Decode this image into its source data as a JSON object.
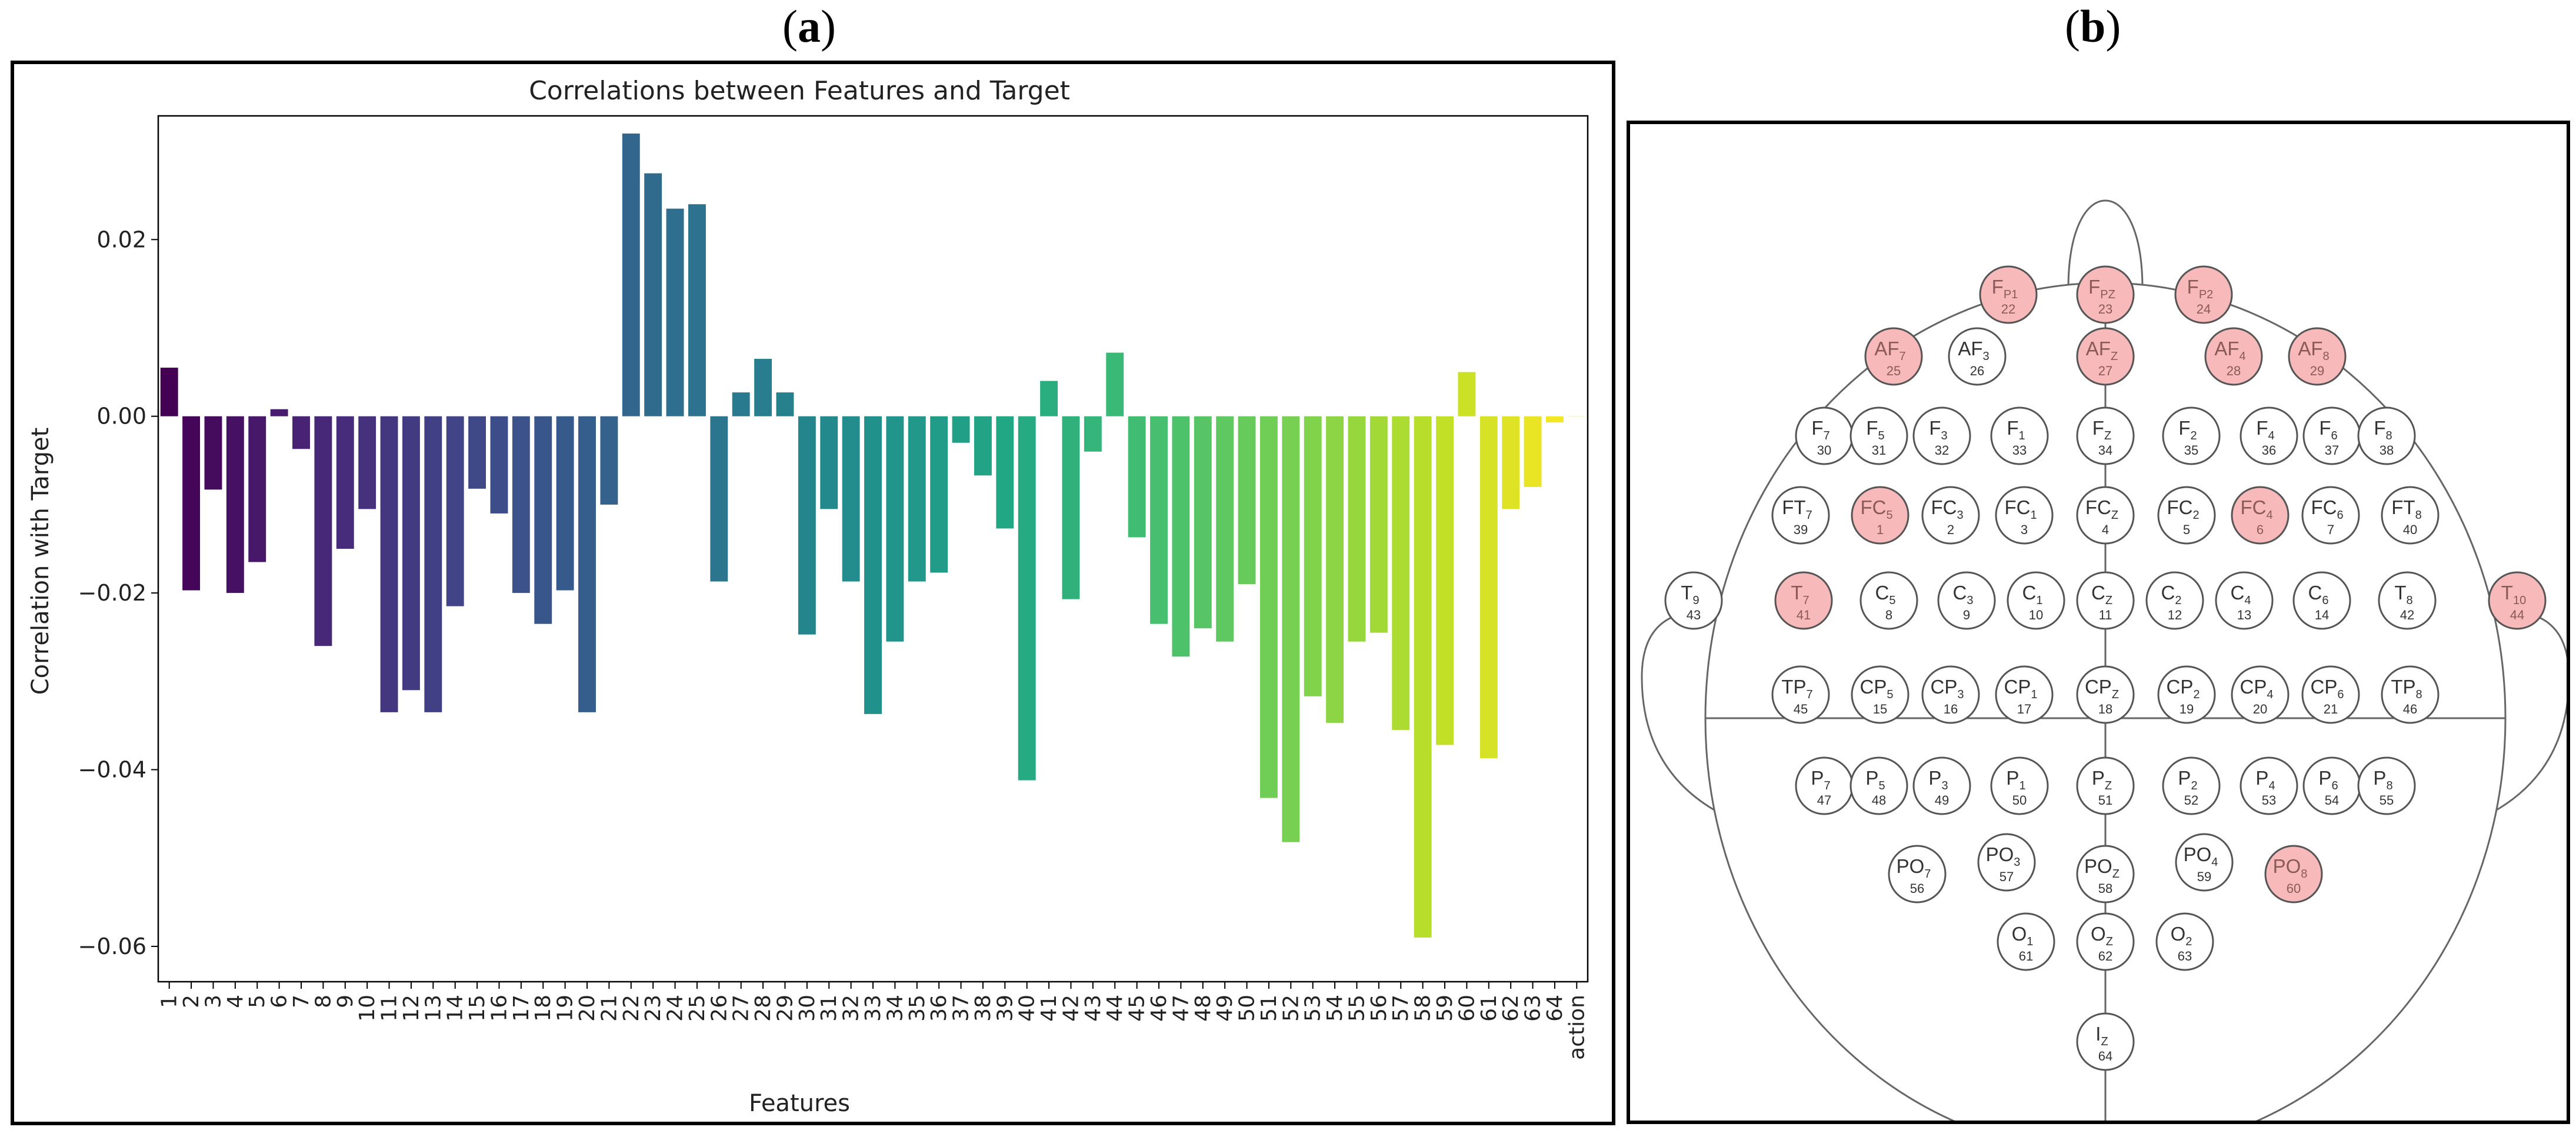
{
  "panel_labels": {
    "a": "a",
    "b": "b"
  },
  "chart_data": {
    "type": "bar",
    "title": "Correlations between Features and Target",
    "xlabel": "Features",
    "ylabel": "Correlation with Target",
    "ylim": [
      -0.064,
      0.034
    ],
    "yticks": [
      0.02,
      0.0,
      -0.02,
      -0.04,
      -0.06
    ],
    "ytick_labels": [
      "0.02",
      "0.00",
      "−0.02",
      "−0.04",
      "−0.06"
    ],
    "categories": [
      "1",
      "2",
      "3",
      "4",
      "5",
      "6",
      "7",
      "8",
      "9",
      "10",
      "11",
      "12",
      "13",
      "14",
      "15",
      "16",
      "17",
      "18",
      "19",
      "20",
      "21",
      "22",
      "23",
      "24",
      "25",
      "26",
      "27",
      "28",
      "29",
      "30",
      "31",
      "32",
      "33",
      "34",
      "35",
      "36",
      "37",
      "38",
      "39",
      "40",
      "41",
      "42",
      "43",
      "44",
      "45",
      "46",
      "47",
      "48",
      "49",
      "50",
      "51",
      "52",
      "53",
      "54",
      "55",
      "56",
      "57",
      "58",
      "59",
      "60",
      "61",
      "62",
      "63",
      "64",
      "action"
    ],
    "values": [
      0.0055,
      -0.0197,
      -0.0083,
      -0.02,
      -0.0165,
      0.0008,
      -0.0037,
      -0.026,
      -0.015,
      -0.0105,
      -0.0335,
      -0.031,
      -0.0335,
      -0.0215,
      -0.0082,
      -0.011,
      -0.02,
      -0.0235,
      -0.0197,
      -0.0335,
      -0.01,
      0.032,
      0.0275,
      0.0235,
      0.024,
      -0.0187,
      0.0027,
      0.0065,
      0.0027,
      -0.0247,
      -0.0105,
      -0.0187,
      -0.0337,
      -0.0255,
      -0.0187,
      -0.0177,
      -0.003,
      -0.0067,
      -0.0127,
      -0.0412,
      0.004,
      -0.0207,
      -0.004,
      0.0072,
      -0.0137,
      -0.0235,
      -0.0272,
      -0.024,
      -0.0255,
      -0.019,
      -0.0432,
      -0.0482,
      -0.0317,
      -0.0347,
      -0.0255,
      -0.0245,
      -0.0355,
      -0.059,
      -0.0372,
      0.005,
      -0.0387,
      -0.0105,
      -0.008,
      -0.0007,
      0
    ],
    "colormap": "viridis"
  },
  "electrode_map": {
    "electrodes": [
      {
        "name": "F",
        "sub": "P1",
        "num": "22",
        "hl": true
      },
      {
        "name": "F",
        "sub": "PZ",
        "num": "23",
        "hl": true
      },
      {
        "name": "F",
        "sub": "P2",
        "num": "24",
        "hl": true
      },
      {
        "name": "AF",
        "sub": "7",
        "num": "25",
        "hl": true
      },
      {
        "name": "AF",
        "sub": "3",
        "num": "26",
        "hl": false
      },
      {
        "name": "AF",
        "sub": "Z",
        "num": "27",
        "hl": true
      },
      {
        "name": "AF",
        "sub": "4",
        "num": "28",
        "hl": true
      },
      {
        "name": "AF",
        "sub": "8",
        "num": "29",
        "hl": true
      },
      {
        "name": "F",
        "sub": "7",
        "num": "30",
        "hl": false
      },
      {
        "name": "F",
        "sub": "5",
        "num": "31",
        "hl": false
      },
      {
        "name": "F",
        "sub": "3",
        "num": "32",
        "hl": false
      },
      {
        "name": "F",
        "sub": "1",
        "num": "33",
        "hl": false
      },
      {
        "name": "F",
        "sub": "Z",
        "num": "34",
        "hl": false
      },
      {
        "name": "F",
        "sub": "2",
        "num": "35",
        "hl": false
      },
      {
        "name": "F",
        "sub": "4",
        "num": "36",
        "hl": false
      },
      {
        "name": "F",
        "sub": "6",
        "num": "37",
        "hl": false
      },
      {
        "name": "F",
        "sub": "8",
        "num": "38",
        "hl": false
      },
      {
        "name": "FT",
        "sub": "7",
        "num": "39",
        "hl": false
      },
      {
        "name": "FC",
        "sub": "5",
        "num": "1",
        "hl": true
      },
      {
        "name": "FC",
        "sub": "3",
        "num": "2",
        "hl": false
      },
      {
        "name": "FC",
        "sub": "1",
        "num": "3",
        "hl": false
      },
      {
        "name": "FC",
        "sub": "Z",
        "num": "4",
        "hl": false
      },
      {
        "name": "FC",
        "sub": "2",
        "num": "5",
        "hl": false
      },
      {
        "name": "FC",
        "sub": "4",
        "num": "6",
        "hl": true
      },
      {
        "name": "FC",
        "sub": "6",
        "num": "7",
        "hl": false
      },
      {
        "name": "FT",
        "sub": "8",
        "num": "40",
        "hl": false
      },
      {
        "name": "T",
        "sub": "9",
        "num": "43",
        "hl": false
      },
      {
        "name": "T",
        "sub": "7",
        "num": "41",
        "hl": true
      },
      {
        "name": "C",
        "sub": "5",
        "num": "8",
        "hl": false
      },
      {
        "name": "C",
        "sub": "3",
        "num": "9",
        "hl": false
      },
      {
        "name": "C",
        "sub": "1",
        "num": "10",
        "hl": false
      },
      {
        "name": "C",
        "sub": "Z",
        "num": "11",
        "hl": false
      },
      {
        "name": "C",
        "sub": "2",
        "num": "12",
        "hl": false
      },
      {
        "name": "C",
        "sub": "4",
        "num": "13",
        "hl": false
      },
      {
        "name": "C",
        "sub": "6",
        "num": "14",
        "hl": false
      },
      {
        "name": "T",
        "sub": "8",
        "num": "42",
        "hl": false
      },
      {
        "name": "T",
        "sub": "10",
        "num": "44",
        "hl": true
      },
      {
        "name": "TP",
        "sub": "7",
        "num": "45",
        "hl": false
      },
      {
        "name": "CP",
        "sub": "5",
        "num": "15",
        "hl": false
      },
      {
        "name": "CP",
        "sub": "3",
        "num": "16",
        "hl": false
      },
      {
        "name": "CP",
        "sub": "1",
        "num": "17",
        "hl": false
      },
      {
        "name": "CP",
        "sub": "Z",
        "num": "18",
        "hl": false
      },
      {
        "name": "CP",
        "sub": "2",
        "num": "19",
        "hl": false
      },
      {
        "name": "CP",
        "sub": "4",
        "num": "20",
        "hl": false
      },
      {
        "name": "CP",
        "sub": "6",
        "num": "21",
        "hl": false
      },
      {
        "name": "TP",
        "sub": "8",
        "num": "46",
        "hl": false
      },
      {
        "name": "P",
        "sub": "7",
        "num": "47",
        "hl": false
      },
      {
        "name": "P",
        "sub": "5",
        "num": "48",
        "hl": false
      },
      {
        "name": "P",
        "sub": "3",
        "num": "49",
        "hl": false
      },
      {
        "name": "P",
        "sub": "1",
        "num": "50",
        "hl": false
      },
      {
        "name": "P",
        "sub": "Z",
        "num": "51",
        "hl": false
      },
      {
        "name": "P",
        "sub": "2",
        "num": "52",
        "hl": false
      },
      {
        "name": "P",
        "sub": "4",
        "num": "53",
        "hl": false
      },
      {
        "name": "P",
        "sub": "6",
        "num": "54",
        "hl": false
      },
      {
        "name": "P",
        "sub": "8",
        "num": "55",
        "hl": false
      },
      {
        "name": "PO",
        "sub": "7",
        "num": "56",
        "hl": false
      },
      {
        "name": "PO",
        "sub": "3",
        "num": "57",
        "hl": false
      },
      {
        "name": "PO",
        "sub": "Z",
        "num": "58",
        "hl": false
      },
      {
        "name": "PO",
        "sub": "4",
        "num": "59",
        "hl": false
      },
      {
        "name": "PO",
        "sub": "8",
        "num": "60",
        "hl": true
      },
      {
        "name": "O",
        "sub": "1",
        "num": "61",
        "hl": false
      },
      {
        "name": "O",
        "sub": "Z",
        "num": "62",
        "hl": false
      },
      {
        "name": "O",
        "sub": "2",
        "num": "63",
        "hl": false
      },
      {
        "name": "I",
        "sub": "Z",
        "num": "64",
        "hl": false
      }
    ],
    "colors": {
      "highlight": "#f7b9b9",
      "normal": "#ffffff",
      "stroke": "#555555"
    }
  }
}
